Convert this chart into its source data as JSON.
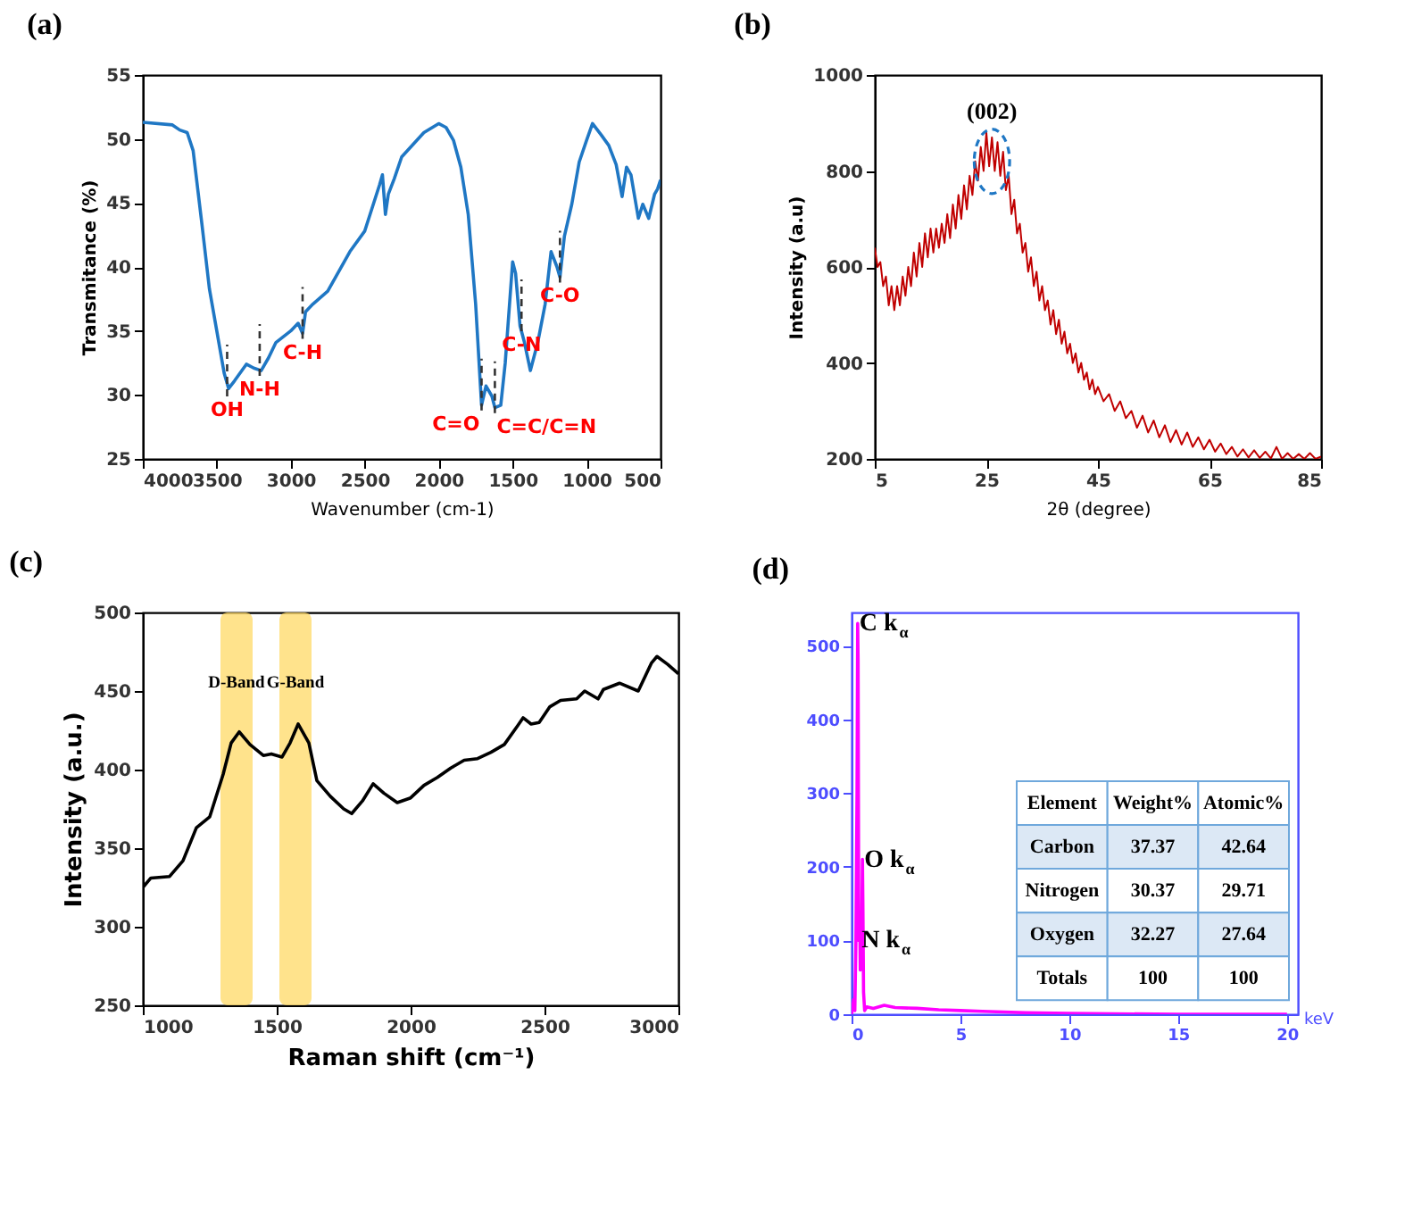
{
  "chart_data": [
    {
      "type": "line",
      "title": "(a)",
      "xlabel": "Wavenumber (cm-1)",
      "ylabel": "Transmitance (%)",
      "xlim": [
        4000,
        500
      ],
      "ylim": [
        25,
        55
      ],
      "xticks": [
        4000,
        3500,
        3000,
        2500,
        2000,
        1500,
        1000,
        500
      ],
      "yticks": [
        25,
        30,
        35,
        40,
        45,
        50,
        55
      ],
      "x": [
        4000,
        3800,
        3750,
        3700,
        3660,
        3600,
        3550,
        3500,
        3450,
        3420,
        3380,
        3300,
        3250,
        3200,
        3150,
        3100,
        3000,
        2950,
        2920,
        2900,
        2850,
        2750,
        2600,
        2500,
        2400,
        2380,
        2360,
        2340,
        2300,
        2250,
        2100,
        2000,
        1950,
        1900,
        1850,
        1800,
        1750,
        1710,
        1680,
        1640,
        1620,
        1580,
        1550,
        1500,
        1480,
        1450,
        1420,
        1380,
        1330,
        1280,
        1240,
        1200,
        1180,
        1150,
        1100,
        1050,
        1000,
        960,
        900,
        850,
        800,
        760,
        730,
        700,
        650,
        620,
        580,
        540,
        520,
        500
      ],
      "series": [
        {
          "color": "#1f77c4",
          "values": [
            51.3,
            51.1,
            50.7,
            50.5,
            49.1,
            43.3,
            38.3,
            35,
            31.7,
            30.5,
            31.1,
            32.4,
            32.1,
            31.9,
            32.9,
            34.1,
            35,
            35.6,
            34.8,
            36.5,
            37.1,
            38.1,
            41.2,
            42.8,
            46.4,
            47.2,
            44.1,
            45.7,
            46.9,
            48.6,
            50.5,
            51.2,
            50.9,
            49.9,
            47.8,
            44.1,
            37.1,
            29.2,
            30.7,
            29.9,
            29,
            29.2,
            32.5,
            40.4,
            39.5,
            35.4,
            34.1,
            31.9,
            34.1,
            37.1,
            41.2,
            40,
            39.2,
            42.4,
            44.9,
            48.2,
            49.9,
            51.2,
            50.3,
            49.5,
            48,
            45.5,
            47.8,
            47.2,
            43.8,
            44.9,
            43.8,
            45.7,
            46.1,
            46.8
          ]
        }
      ],
      "annotations": [
        {
          "text": "OH",
          "x": 3430,
          "y": 30.3
        },
        {
          "text": "N-H",
          "x": 3210,
          "y": 31.9
        },
        {
          "text": "C-H",
          "x": 2920,
          "y": 34.8
        },
        {
          "text": "C=O",
          "x": 1710,
          "y": 29.2
        },
        {
          "text": "C=C/C=N",
          "x": 1620,
          "y": 29
        },
        {
          "text": "C-N",
          "x": 1440,
          "y": 35.4
        },
        {
          "text": "C-O",
          "x": 1180,
          "y": 39.2
        }
      ]
    },
    {
      "type": "line",
      "title": "(b)",
      "xlabel": "2θ (degree)",
      "ylabel": "Intensity (a.u)",
      "xlim": [
        5,
        85
      ],
      "ylim": [
        200,
        1000
      ],
      "xticks": [
        5,
        25,
        45,
        65,
        85
      ],
      "yticks": [
        200,
        400,
        600,
        800,
        1000
      ],
      "x": [
        5,
        5.5,
        6,
        6.5,
        7,
        7.5,
        8,
        8.5,
        9,
        9.5,
        10,
        10.5,
        11,
        11.5,
        12,
        12.5,
        13,
        13.5,
        14,
        14.5,
        15,
        15.5,
        16,
        16.5,
        17,
        17.5,
        18,
        18.5,
        19,
        19.5,
        20,
        20.5,
        21,
        21.5,
        22,
        22.5,
        23,
        23.5,
        24,
        24.5,
        25,
        25.5,
        26,
        26.5,
        27,
        27.5,
        28,
        28.5,
        29,
        29.5,
        30,
        30.5,
        31,
        31.5,
        32,
        32.5,
        33,
        33.5,
        34,
        34.5,
        35,
        35.5,
        36,
        36.5,
        37,
        37.5,
        38,
        38.5,
        39,
        39.5,
        40,
        40.5,
        41,
        41.5,
        42,
        42.5,
        43,
        43.5,
        44,
        44.5,
        45,
        46,
        47,
        48,
        49,
        50,
        51,
        52,
        53,
        54,
        55,
        56,
        57,
        58,
        59,
        60,
        61,
        62,
        63,
        64,
        65,
        66,
        67,
        68,
        69,
        70,
        71,
        72,
        73,
        74,
        75,
        76,
        77,
        78,
        79,
        80,
        81,
        82,
        83,
        84,
        85
      ],
      "series": [
        {
          "color": "#c00000",
          "values": [
            640,
            600,
            610,
            560,
            580,
            520,
            560,
            510,
            560,
            520,
            580,
            540,
            600,
            560,
            630,
            580,
            650,
            600,
            670,
            620,
            680,
            630,
            680,
            640,
            690,
            650,
            710,
            660,
            730,
            680,
            750,
            700,
            770,
            720,
            790,
            750,
            820,
            780,
            850,
            800,
            880,
            810,
            870,
            800,
            860,
            790,
            840,
            760,
            790,
            710,
            740,
            670,
            690,
            630,
            650,
            590,
            620,
            560,
            590,
            530,
            560,
            510,
            530,
            480,
            510,
            460,
            490,
            440,
            465,
            420,
            440,
            400,
            420,
            380,
            400,
            365,
            380,
            345,
            365,
            335,
            350,
            320,
            335,
            300,
            320,
            285,
            300,
            265,
            290,
            255,
            280,
            245,
            270,
            235,
            260,
            230,
            255,
            225,
            245,
            220,
            240,
            215,
            232,
            210,
            225,
            205,
            220,
            203,
            218,
            202,
            215,
            201,
            225,
            200,
            212,
            200,
            210,
            200,
            212,
            200,
            205
          ]
        }
      ],
      "annotations": [
        {
          "text": "(002)",
          "x": 26,
          "y": 820
        }
      ]
    },
    {
      "type": "line",
      "title": "(c)",
      "xlabel": "Raman shift (cm⁻¹)",
      "ylabel": "Intensity (a.u.)",
      "xlim": [
        1000,
        3000
      ],
      "ylim": [
        250,
        500
      ],
      "xticks": [
        1000,
        1500,
        2000,
        2500,
        3000
      ],
      "yticks": [
        250,
        300,
        350,
        400,
        450,
        500
      ],
      "x": [
        1000,
        1030,
        1100,
        1150,
        1200,
        1250,
        1300,
        1330,
        1360,
        1400,
        1450,
        1480,
        1520,
        1550,
        1580,
        1620,
        1650,
        1700,
        1750,
        1780,
        1820,
        1860,
        1900,
        1950,
        2000,
        2050,
        2100,
        2150,
        2200,
        2250,
        2300,
        2350,
        2400,
        2420,
        2450,
        2480,
        2520,
        2560,
        2620,
        2650,
        2700,
        2720,
        2780,
        2850,
        2900,
        2920,
        2960,
        3000
      ],
      "series": [
        {
          "color": "#000000",
          "values": [
            325,
            331,
            332,
            342,
            363,
            370,
            397,
            417,
            424,
            416,
            409,
            410,
            408,
            417,
            429,
            417,
            393,
            383,
            375,
            372,
            380,
            391,
            385,
            379,
            382,
            390,
            395,
            401,
            406,
            407,
            411,
            416,
            428,
            433,
            429,
            430,
            440,
            444,
            445,
            450,
            445,
            451,
            455,
            450,
            468,
            472,
            467,
            461
          ]
        }
      ],
      "bands": [
        {
          "axis": "x",
          "from": 1290,
          "to": 1410,
          "label": "D-Band",
          "color": "#ffd966"
        },
        {
          "axis": "x",
          "from": 1510,
          "to": 1630,
          "label": "G-Band",
          "color": "#ffd966"
        }
      ]
    },
    {
      "type": "line",
      "title": "(d)",
      "xlabel": "keV",
      "xlim": [
        0,
        20.5
      ],
      "ylim": [
        0,
        545
      ],
      "xticks": [
        0,
        5,
        10,
        15,
        20
      ],
      "yticks": [
        0,
        100,
        200,
        300,
        400,
        500
      ],
      "x": [
        0,
        0.1,
        0.15,
        0.2,
        0.25,
        0.28,
        0.3,
        0.33,
        0.38,
        0.4,
        0.45,
        0.5,
        0.52,
        0.55,
        0.6,
        0.7,
        1,
        1.5,
        2,
        3,
        4,
        5,
        6,
        7,
        8,
        10,
        15,
        20
      ],
      "series": [
        {
          "color": "#ff00ff",
          "values": [
            0,
            20,
            5,
            100,
            300,
            530,
            480,
            100,
            120,
            60,
            70,
            210,
            150,
            30,
            5,
            10,
            8,
            12,
            9,
            8,
            6,
            5,
            4,
            3,
            2,
            1,
            0,
            0
          ]
        }
      ],
      "annotations": [
        {
          "text": "C k$_{α}$",
          "x": 0.28,
          "y": 530
        },
        {
          "text": "O k$_{α}$",
          "x": 0.5,
          "y": 210
        },
        {
          "text": "N k$_{α}$",
          "x": 0.38,
          "y": 100
        },
        "Element",
        "Weight%",
        "Atomic%",
        "Carbon",
        "37.37",
        "42.64",
        "Nitrogen",
        "30.37",
        "29.71",
        "Oxygen",
        "32.27",
        "27.64",
        "Totals",
        "100",
        "100"
      ]
    }
  ]
}
